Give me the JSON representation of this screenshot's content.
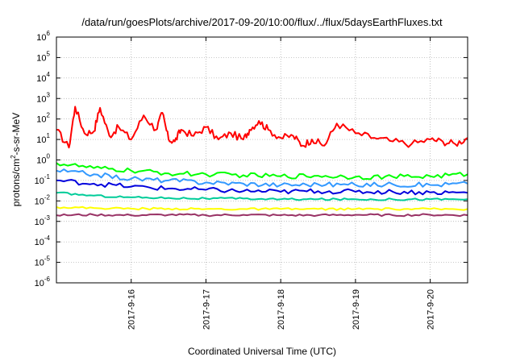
{
  "chart_data": {
    "type": "line",
    "title": "/data/run/goesPlots/archive/2017-09-20/10:00/flux/../flux/5daysEarthFluxes.txt",
    "xlabel": "Coordinated Universal Time (UTC)",
    "ylabel": "protons/cm2-s-sr-MeV",
    "ylabel_base": "protons/cm",
    "ylabel_sup": "2",
    "ylabel_rest": "-s-sr-MeV",
    "yscale": "log",
    "ylim": [
      1e-06,
      1000000.0
    ],
    "xlim": [
      "2017-09-15 00:00",
      "2017-09-20 12:00"
    ],
    "grid": true,
    "x_ticks": [
      "2017-9-16",
      "2017-9-17",
      "2017-9-18",
      "2017-9-19",
      "2017-9-20"
    ],
    "y_ticks": [
      {
        "base": "10",
        "exp": "-6"
      },
      {
        "base": "10",
        "exp": "-5"
      },
      {
        "base": "10",
        "exp": "-4"
      },
      {
        "base": "10",
        "exp": "-3"
      },
      {
        "base": "10",
        "exp": "-2"
      },
      {
        "base": "10",
        "exp": "-1"
      },
      {
        "base": "10",
        "exp": "0"
      },
      {
        "base": "10",
        "exp": "1"
      },
      {
        "base": "10",
        "exp": "2"
      },
      {
        "base": "10",
        "exp": "3"
      },
      {
        "base": "10",
        "exp": "4"
      },
      {
        "base": "10",
        "exp": "5"
      },
      {
        "base": "10",
        "exp": "6"
      }
    ],
    "series": [
      {
        "color": "#ff0000",
        "x": [
          "2017-09-15 00:00",
          "2017-09-15 04:00",
          "2017-09-15 06:00",
          "2017-09-15 09:00",
          "2017-09-15 12:00",
          "2017-09-15 14:00",
          "2017-09-15 17:00",
          "2017-09-15 20:00",
          "2017-09-16 00:00",
          "2017-09-16 04:00",
          "2017-09-16 08:00",
          "2017-09-16 10:00",
          "2017-09-16 12:00",
          "2017-09-16 14:00",
          "2017-09-16 16:00",
          "2017-09-16 20:00",
          "2017-09-17 00:00",
          "2017-09-17 04:00",
          "2017-09-17 08:00",
          "2017-09-17 12:00",
          "2017-09-17 14:00",
          "2017-09-17 17:00",
          "2017-09-17 20:00",
          "2017-09-18 00:00",
          "2017-09-18 04:00",
          "2017-09-18 07:00",
          "2017-09-18 10:00",
          "2017-09-18 14:00",
          "2017-09-18 18:00",
          "2017-09-19 00:00",
          "2017-09-19 06:00",
          "2017-09-19 12:00",
          "2017-09-19 18:00",
          "2017-09-20 00:00",
          "2017-09-20 04:00",
          "2017-09-20 08:00",
          "2017-09-20 12:00"
        ],
        "y": [
          30,
          4,
          400,
          20,
          25,
          350,
          15,
          40,
          10,
          150,
          30,
          200,
          10,
          8,
          30,
          15,
          40,
          10,
          20,
          10,
          30,
          80,
          30,
          12,
          15,
          5,
          10,
          5,
          60,
          20,
          12,
          8,
          6,
          10,
          8,
          6,
          12
        ]
      },
      {
        "color": "#00ff00",
        "x": [
          "2017-09-15 00:00",
          "2017-09-15 12:00",
          "2017-09-16 00:00",
          "2017-09-16 12:00",
          "2017-09-17 00:00",
          "2017-09-17 12:00",
          "2017-09-18 00:00",
          "2017-09-18 12:00",
          "2017-09-19 00:00",
          "2017-09-19 12:00",
          "2017-09-20 00:00",
          "2017-09-20 12:00"
        ],
        "y": [
          0.7,
          0.4,
          0.3,
          0.22,
          0.2,
          0.18,
          0.16,
          0.17,
          0.15,
          0.15,
          0.16,
          0.2
        ]
      },
      {
        "color": "#3399ff",
        "x": [
          "2017-09-15 00:00",
          "2017-09-15 12:00",
          "2017-09-16 00:00",
          "2017-09-16 12:00",
          "2017-09-17 00:00",
          "2017-09-17 12:00",
          "2017-09-18 00:00",
          "2017-09-18 12:00",
          "2017-09-19 00:00",
          "2017-09-19 12:00",
          "2017-09-20 00:00",
          "2017-09-20 12:00"
        ],
        "y": [
          0.3,
          0.2,
          0.12,
          0.1,
          0.08,
          0.07,
          0.06,
          0.065,
          0.06,
          0.065,
          0.06,
          0.07
        ]
      },
      {
        "color": "#0000dd",
        "x": [
          "2017-09-15 00:00",
          "2017-09-15 12:00",
          "2017-09-16 00:00",
          "2017-09-16 12:00",
          "2017-09-17 00:00",
          "2017-09-17 12:00",
          "2017-09-18 00:00",
          "2017-09-18 12:00",
          "2017-09-19 00:00",
          "2017-09-19 12:00",
          "2017-09-20 00:00",
          "2017-09-20 12:00"
        ],
        "y": [
          0.1,
          0.07,
          0.05,
          0.04,
          0.035,
          0.03,
          0.028,
          0.03,
          0.028,
          0.028,
          0.026,
          0.025
        ]
      },
      {
        "color": "#00cc99",
        "x": [
          "2017-09-15 00:00",
          "2017-09-15 12:00",
          "2017-09-16 00:00",
          "2017-09-16 12:00",
          "2017-09-17 00:00",
          "2017-09-17 12:00",
          "2017-09-18 00:00",
          "2017-09-18 12:00",
          "2017-09-19 00:00",
          "2017-09-19 12:00",
          "2017-09-20 00:00",
          "2017-09-20 12:00"
        ],
        "y": [
          0.025,
          0.018,
          0.015,
          0.014,
          0.013,
          0.013,
          0.012,
          0.012,
          0.012,
          0.012,
          0.012,
          0.012
        ]
      },
      {
        "color": "#ffff00",
        "x": [
          "2017-09-15 00:00",
          "2017-09-15 12:00",
          "2017-09-16 00:00",
          "2017-09-16 12:00",
          "2017-09-17 00:00",
          "2017-09-17 12:00",
          "2017-09-18 00:00",
          "2017-09-18 12:00",
          "2017-09-19 00:00",
          "2017-09-19 12:00",
          "2017-09-20 00:00",
          "2017-09-20 12:00"
        ],
        "y": [
          0.005,
          0.0045,
          0.0042,
          0.0042,
          0.004,
          0.004,
          0.004,
          0.004,
          0.004,
          0.004,
          0.004,
          0.004
        ]
      },
      {
        "color": "#993366",
        "x": [
          "2017-09-15 00:00",
          "2017-09-15 12:00",
          "2017-09-16 00:00",
          "2017-09-16 12:00",
          "2017-09-17 00:00",
          "2017-09-17 12:00",
          "2017-09-18 00:00",
          "2017-09-18 12:00",
          "2017-09-19 00:00",
          "2017-09-19 12:00",
          "2017-09-20 00:00",
          "2017-09-20 12:00"
        ],
        "y": [
          0.002,
          0.0021,
          0.002,
          0.0021,
          0.002,
          0.0021,
          0.002,
          0.002,
          0.0021,
          0.002,
          0.0021,
          0.002
        ]
      }
    ]
  }
}
